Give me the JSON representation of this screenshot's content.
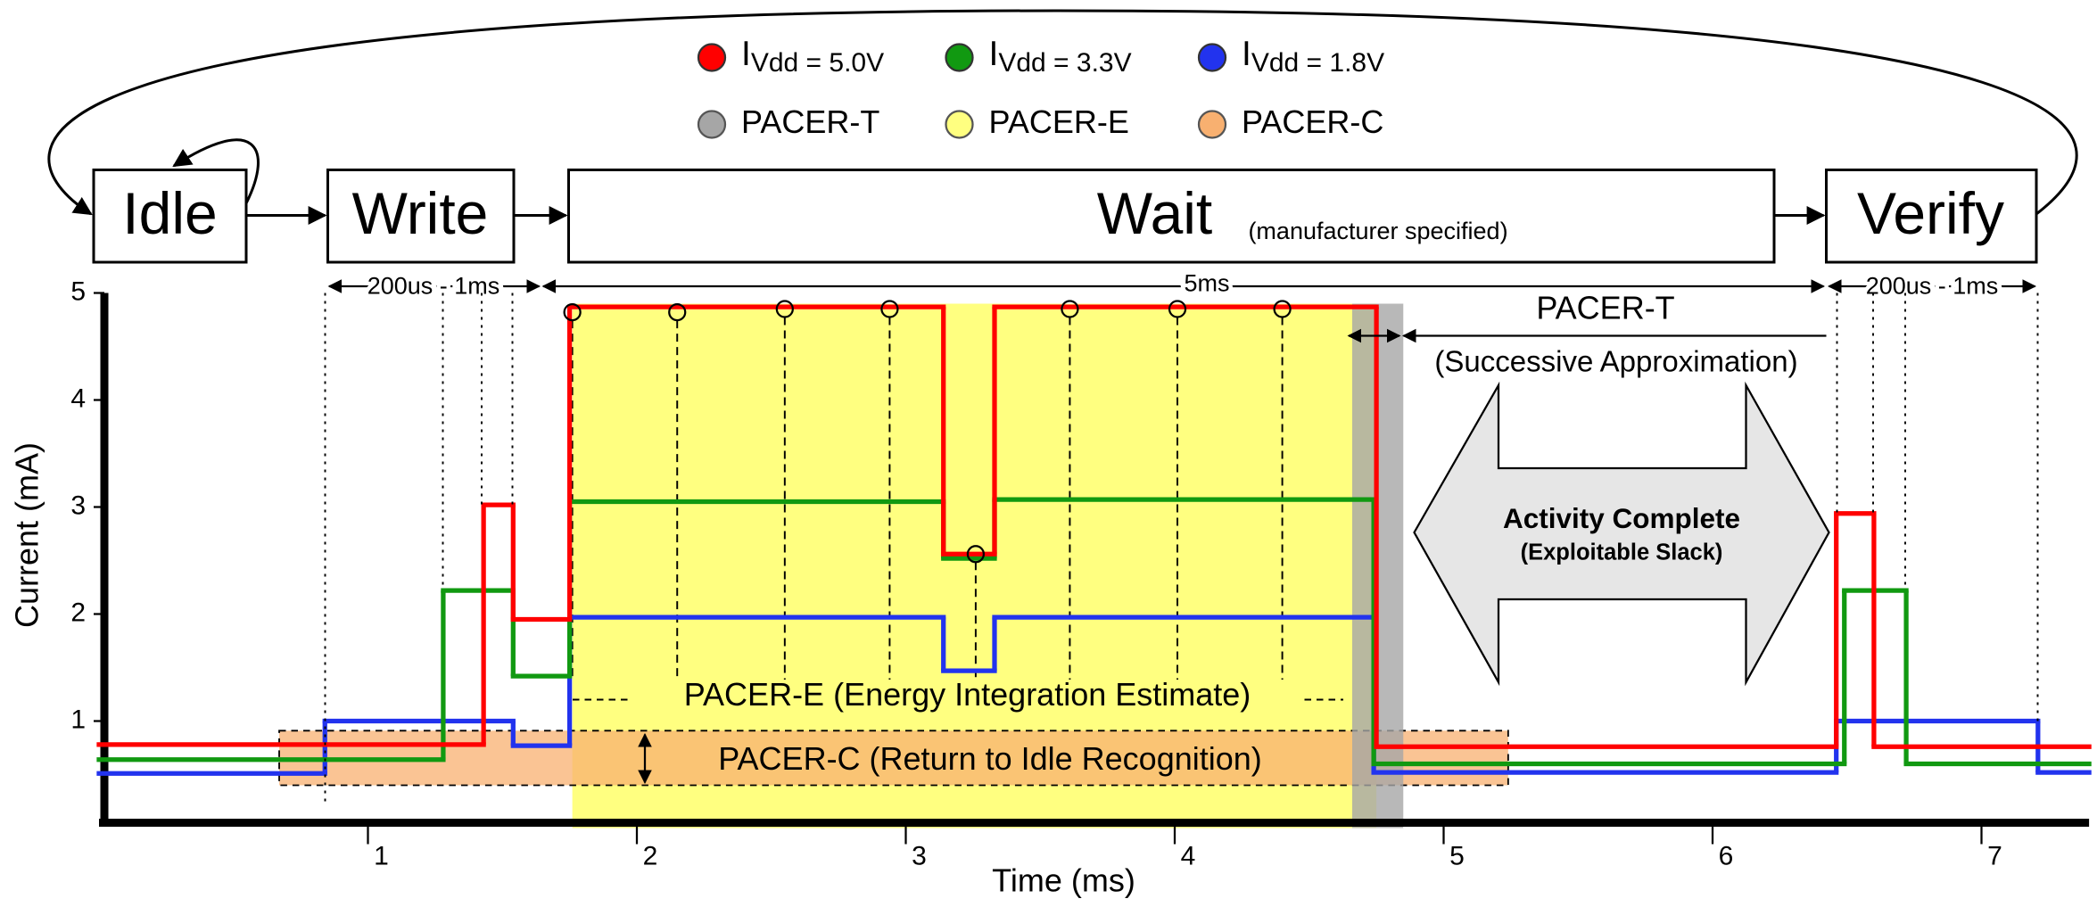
{
  "chart_data": {
    "type": "step",
    "xlabel": "Time (ms)",
    "ylabel": "Current (mA)",
    "xlim": [
      0,
      7.4
    ],
    "ylim": [
      0,
      5
    ],
    "xticks": [
      1,
      2,
      3,
      4,
      5,
      6,
      7
    ],
    "yticks": [
      1,
      2,
      3,
      4,
      5
    ],
    "series": [
      {
        "name": "I",
        "subscript": "Vdd = 5.0V",
        "color": "#ff0000",
        "x": [
          0,
          1.43,
          1.54,
          1.75,
          3.14,
          3.33,
          4.75,
          6.46,
          6.6
        ],
        "values": [
          0.78,
          3.02,
          1.95,
          4.87,
          2.56,
          4.87,
          0.76,
          2.94,
          0.76
        ]
      },
      {
        "name": "I",
        "subscript": "Vdd = 3.3V",
        "color": "#119911",
        "x": [
          0,
          1.28,
          1.54,
          1.75,
          3.14,
          3.33,
          4.74,
          6.49,
          6.72
        ],
        "values": [
          0.64,
          2.22,
          1.42,
          3.05,
          2.52,
          3.07,
          0.6,
          2.22,
          0.6
        ]
      },
      {
        "name": "I",
        "subscript": "Vdd = 1.8V",
        "color": "#2233ee",
        "x": [
          0,
          0.84,
          1.54,
          1.75,
          3.14,
          3.33,
          4.74,
          6.46,
          7.21
        ],
        "values": [
          0.51,
          1.0,
          0.77,
          1.97,
          1.47,
          1.97,
          0.52,
          1.0,
          0.52
        ]
      }
    ],
    "regions": [
      {
        "name": "PACER-T",
        "color": "#a6a6a6",
        "x": [
          4.66,
          4.85
        ],
        "y": [
          0,
          4.9
        ]
      },
      {
        "name": "PACER-E",
        "color": "#ffff80",
        "x": [
          1.76,
          4.75
        ],
        "y": [
          0,
          4.9
        ]
      },
      {
        "name": "PACER-C",
        "color": "#f8b070",
        "x": [
          0.67,
          5.24
        ],
        "y": [
          0.4,
          0.91
        ]
      }
    ],
    "samples": {
      "x": [
        1.76,
        2.15,
        2.55,
        2.94,
        3.26,
        3.61,
        4.01,
        4.4
      ],
      "values": [
        4.82,
        4.82,
        4.85,
        4.85,
        2.56,
        4.85,
        4.85,
        4.85
      ]
    },
    "states": [
      {
        "label": "Idle"
      },
      {
        "label": "Write"
      },
      {
        "label": "Wait",
        "note": "(manufacturer specified)"
      },
      {
        "label": "Verify"
      }
    ],
    "spans": [
      "200us - 1ms",
      "5ms",
      "200us - 1ms"
    ],
    "annotations": {
      "pacer_t": "PACER-T",
      "pacer_t_note": "(Successive Approximation)",
      "slack_title": "Activity Complete",
      "slack_note": "(Exploitable Slack)",
      "pacer_e": "PACER-E (Energy Integration Estimate)",
      "pacer_c": "PACER-C (Return to Idle Recognition)"
    }
  }
}
